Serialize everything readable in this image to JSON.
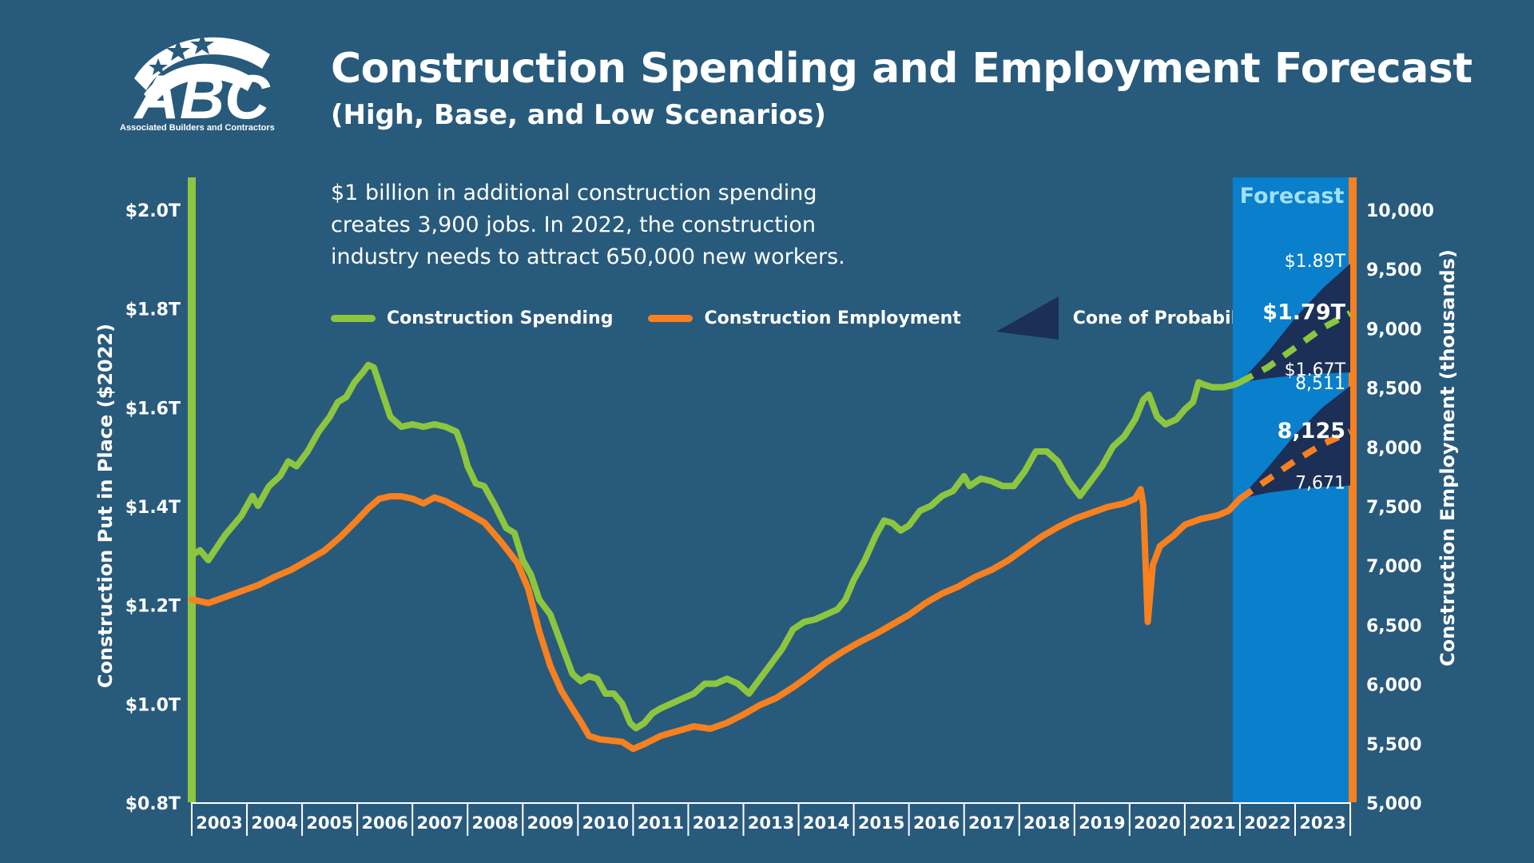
{
  "header": {
    "title": "Construction Spending and Employment Forecast",
    "subtitle": "(High, Base, and Low Scenarios)",
    "note": "$1 billion in additional construction spending creates 3,900 jobs. In 2022, the construction industry needs to attract 650,000 new workers.",
    "logo_text": "Associated Builders and Contractors",
    "logo_letters": "ABC"
  },
  "colors": {
    "background": "#285a7c",
    "spending": "#8cc63f",
    "employment": "#f7801f",
    "cone": "#1b2f57",
    "forecast_band": "#0a7fcb",
    "forecast_label": "#9ee0ff"
  },
  "legend": [
    {
      "label": "Construction Spending",
      "color": "#8cc63f",
      "kind": "line"
    },
    {
      "label": "Construction Employment",
      "color": "#f7801f",
      "kind": "line"
    },
    {
      "label": "Cone of Probability",
      "color": "#1b2f57",
      "kind": "cone"
    }
  ],
  "chart_data": {
    "type": "line",
    "title": "Construction Spending and Employment Forecast",
    "subtitle": "(High, Base, and Low Scenarios)",
    "x_axis": {
      "categories": [
        "2003",
        "2004",
        "2005",
        "2006",
        "2007",
        "2008",
        "2009",
        "2010",
        "2011",
        "2012",
        "2013",
        "2014",
        "2015",
        "2016",
        "2017",
        "2018",
        "2019",
        "2020",
        "2021",
        "2022",
        "2023"
      ]
    },
    "y_left": {
      "label": "Construction Put in Place ($2022)",
      "min": 0.8,
      "max": 2.0,
      "ticks": [
        0.8,
        1.0,
        1.2,
        1.4,
        1.6,
        1.8,
        2.0
      ],
      "tick_labels": [
        "$0.8T",
        "$1.0T",
        "$1.2T",
        "$1.4T",
        "$1.6T",
        "$1.8T",
        "$2.0T"
      ]
    },
    "y_right": {
      "label": "Construction Employment (thousands)",
      "min": 5000,
      "max": 10000,
      "ticks": [
        5000,
        5500,
        6000,
        6500,
        7000,
        7500,
        8000,
        8500,
        9000,
        9500,
        10000
      ],
      "tick_labels": [
        "5,000",
        "5,500",
        "6,000",
        "6,500",
        "7,000",
        "7,500",
        "8,000",
        "8,500",
        "9,000",
        "9,500",
        "10,000"
      ]
    },
    "forecast": {
      "label": "Forecast",
      "start": 2022.0,
      "end": 2024.0
    },
    "series": [
      {
        "name": "Construction Spending",
        "axis": "left",
        "color": "#8cc63f",
        "points": [
          [
            2003.0,
            1.3
          ],
          [
            2003.15,
            1.31
          ],
          [
            2003.3,
            1.29
          ],
          [
            2003.6,
            1.34
          ],
          [
            2003.9,
            1.38
          ],
          [
            2004.1,
            1.42
          ],
          [
            2004.2,
            1.4
          ],
          [
            2004.4,
            1.44
          ],
          [
            2004.6,
            1.46
          ],
          [
            2004.75,
            1.49
          ],
          [
            2004.9,
            1.48
          ],
          [
            2005.1,
            1.51
          ],
          [
            2005.3,
            1.55
          ],
          [
            2005.5,
            1.58
          ],
          [
            2005.65,
            1.61
          ],
          [
            2005.8,
            1.62
          ],
          [
            2005.95,
            1.65
          ],
          [
            2006.1,
            1.67
          ],
          [
            2006.2,
            1.685
          ],
          [
            2006.3,
            1.68
          ],
          [
            2006.45,
            1.63
          ],
          [
            2006.6,
            1.58
          ],
          [
            2006.8,
            1.56
          ],
          [
            2007.0,
            1.565
          ],
          [
            2007.2,
            1.56
          ],
          [
            2007.4,
            1.565
          ],
          [
            2007.6,
            1.56
          ],
          [
            2007.8,
            1.55
          ],
          [
            2007.9,
            1.52
          ],
          [
            2008.0,
            1.48
          ],
          [
            2008.15,
            1.445
          ],
          [
            2008.3,
            1.44
          ],
          [
            2008.5,
            1.4
          ],
          [
            2008.7,
            1.355
          ],
          [
            2008.85,
            1.345
          ],
          [
            2009.0,
            1.29
          ],
          [
            2009.15,
            1.26
          ],
          [
            2009.3,
            1.21
          ],
          [
            2009.5,
            1.18
          ],
          [
            2009.7,
            1.12
          ],
          [
            2009.9,
            1.06
          ],
          [
            2010.05,
            1.045
          ],
          [
            2010.2,
            1.055
          ],
          [
            2010.35,
            1.05
          ],
          [
            2010.5,
            1.02
          ],
          [
            2010.65,
            1.02
          ],
          [
            2010.8,
            1.0
          ],
          [
            2010.95,
            0.96
          ],
          [
            2011.05,
            0.95
          ],
          [
            2011.2,
            0.96
          ],
          [
            2011.35,
            0.98
          ],
          [
            2011.5,
            0.99
          ],
          [
            2011.7,
            1.0
          ],
          [
            2011.9,
            1.01
          ],
          [
            2012.1,
            1.02
          ],
          [
            2012.3,
            1.04
          ],
          [
            2012.5,
            1.04
          ],
          [
            2012.7,
            1.05
          ],
          [
            2012.9,
            1.04
          ],
          [
            2013.1,
            1.02
          ],
          [
            2013.3,
            1.05
          ],
          [
            2013.5,
            1.08
          ],
          [
            2013.7,
            1.11
          ],
          [
            2013.9,
            1.15
          ],
          [
            2014.1,
            1.165
          ],
          [
            2014.3,
            1.17
          ],
          [
            2014.5,
            1.18
          ],
          [
            2014.7,
            1.19
          ],
          [
            2014.85,
            1.21
          ],
          [
            2015.0,
            1.25
          ],
          [
            2015.2,
            1.29
          ],
          [
            2015.4,
            1.34
          ],
          [
            2015.55,
            1.37
          ],
          [
            2015.7,
            1.365
          ],
          [
            2015.85,
            1.35
          ],
          [
            2016.0,
            1.36
          ],
          [
            2016.2,
            1.39
          ],
          [
            2016.4,
            1.4
          ],
          [
            2016.6,
            1.42
          ],
          [
            2016.8,
            1.43
          ],
          [
            2017.0,
            1.46
          ],
          [
            2017.1,
            1.44
          ],
          [
            2017.3,
            1.455
          ],
          [
            2017.5,
            1.45
          ],
          [
            2017.7,
            1.44
          ],
          [
            2017.9,
            1.44
          ],
          [
            2018.1,
            1.47
          ],
          [
            2018.3,
            1.51
          ],
          [
            2018.5,
            1.51
          ],
          [
            2018.7,
            1.49
          ],
          [
            2018.9,
            1.45
          ],
          [
            2019.1,
            1.42
          ],
          [
            2019.3,
            1.45
          ],
          [
            2019.5,
            1.48
          ],
          [
            2019.7,
            1.52
          ],
          [
            2019.9,
            1.54
          ],
          [
            2020.1,
            1.575
          ],
          [
            2020.25,
            1.615
          ],
          [
            2020.35,
            1.625
          ],
          [
            2020.5,
            1.58
          ],
          [
            2020.65,
            1.565
          ],
          [
            2020.85,
            1.575
          ],
          [
            2021.0,
            1.595
          ],
          [
            2021.15,
            1.61
          ],
          [
            2021.25,
            1.65
          ],
          [
            2021.35,
            1.645
          ],
          [
            2021.5,
            1.64
          ],
          [
            2021.7,
            1.64
          ],
          [
            2021.9,
            1.645
          ],
          [
            2022.0,
            1.65
          ]
        ]
      },
      {
        "name": "Construction Employment",
        "axis": "right",
        "color": "#f7801f",
        "points": [
          [
            2003.0,
            6710
          ],
          [
            2003.3,
            6680
          ],
          [
            2003.6,
            6730
          ],
          [
            2003.9,
            6780
          ],
          [
            2004.2,
            6830
          ],
          [
            2004.5,
            6900
          ],
          [
            2004.8,
            6960
          ],
          [
            2005.1,
            7040
          ],
          [
            2005.4,
            7120
          ],
          [
            2005.7,
            7240
          ],
          [
            2006.0,
            7380
          ],
          [
            2006.2,
            7480
          ],
          [
            2006.4,
            7560
          ],
          [
            2006.6,
            7580
          ],
          [
            2006.8,
            7580
          ],
          [
            2007.0,
            7560
          ],
          [
            2007.2,
            7520
          ],
          [
            2007.4,
            7570
          ],
          [
            2007.6,
            7540
          ],
          [
            2007.8,
            7490
          ],
          [
            2008.0,
            7440
          ],
          [
            2008.3,
            7360
          ],
          [
            2008.6,
            7200
          ],
          [
            2008.9,
            7020
          ],
          [
            2009.1,
            6800
          ],
          [
            2009.3,
            6440
          ],
          [
            2009.5,
            6150
          ],
          [
            2009.7,
            5940
          ],
          [
            2009.9,
            5790
          ],
          [
            2010.05,
            5680
          ],
          [
            2010.2,
            5560
          ],
          [
            2010.4,
            5530
          ],
          [
            2010.6,
            5520
          ],
          [
            2010.8,
            5510
          ],
          [
            2011.0,
            5450
          ],
          [
            2011.2,
            5490
          ],
          [
            2011.5,
            5560
          ],
          [
            2011.8,
            5600
          ],
          [
            2012.1,
            5640
          ],
          [
            2012.4,
            5620
          ],
          [
            2012.7,
            5670
          ],
          [
            2013.0,
            5740
          ],
          [
            2013.3,
            5820
          ],
          [
            2013.6,
            5880
          ],
          [
            2013.9,
            5970
          ],
          [
            2014.2,
            6070
          ],
          [
            2014.5,
            6180
          ],
          [
            2014.8,
            6270
          ],
          [
            2015.1,
            6350
          ],
          [
            2015.4,
            6420
          ],
          [
            2015.7,
            6500
          ],
          [
            2016.0,
            6580
          ],
          [
            2016.3,
            6680
          ],
          [
            2016.6,
            6760
          ],
          [
            2016.9,
            6820
          ],
          [
            2017.2,
            6900
          ],
          [
            2017.5,
            6960
          ],
          [
            2017.8,
            7040
          ],
          [
            2018.1,
            7140
          ],
          [
            2018.4,
            7240
          ],
          [
            2018.7,
            7320
          ],
          [
            2019.0,
            7390
          ],
          [
            2019.3,
            7440
          ],
          [
            2019.6,
            7490
          ],
          [
            2019.9,
            7520
          ],
          [
            2020.1,
            7560
          ],
          [
            2020.2,
            7640
          ],
          [
            2020.25,
            7500
          ],
          [
            2020.33,
            6520
          ],
          [
            2020.42,
            7000
          ],
          [
            2020.55,
            7160
          ],
          [
            2020.8,
            7250
          ],
          [
            2021.0,
            7340
          ],
          [
            2021.3,
            7390
          ],
          [
            2021.6,
            7420
          ],
          [
            2021.8,
            7460
          ],
          [
            2022.0,
            7560
          ]
        ]
      },
      {
        "name": "Spending forecast (base)",
        "axis": "left",
        "dashed": true,
        "color": "#8cc63f",
        "points": [
          [
            2022.0,
            1.65
          ],
          [
            2022.5,
            1.68
          ],
          [
            2023.0,
            1.72
          ],
          [
            2023.5,
            1.76
          ],
          [
            2024.0,
            1.79
          ]
        ]
      },
      {
        "name": "Employment forecast (base)",
        "axis": "right",
        "dashed": true,
        "color": "#f7801f",
        "points": [
          [
            2022.0,
            7560
          ],
          [
            2022.5,
            7720
          ],
          [
            2023.0,
            7880
          ],
          [
            2023.5,
            8020
          ],
          [
            2024.0,
            8125
          ]
        ]
      }
    ],
    "cones": [
      {
        "name": "Spending cone",
        "axis": "left",
        "start": [
          2022.0,
          1.65
        ],
        "upper": [
          [
            2022.5,
            1.71
          ],
          [
            2023.0,
            1.78
          ],
          [
            2023.5,
            1.84
          ],
          [
            2024.0,
            1.89
          ]
        ],
        "lower": [
          [
            2022.5,
            1.658
          ],
          [
            2023.0,
            1.664
          ],
          [
            2023.5,
            1.668
          ],
          [
            2024.0,
            1.67
          ]
        ]
      },
      {
        "name": "Employment cone",
        "axis": "right",
        "start": [
          2022.0,
          7560
        ],
        "upper": [
          [
            2022.5,
            7820
          ],
          [
            2023.0,
            8100
          ],
          [
            2023.5,
            8330
          ],
          [
            2024.0,
            8511
          ]
        ],
        "lower": [
          [
            2022.5,
            7610
          ],
          [
            2023.0,
            7640
          ],
          [
            2023.5,
            7660
          ],
          [
            2024.0,
            7671
          ]
        ]
      }
    ],
    "annotations": [
      {
        "text": "$1.89T",
        "axis": "left",
        "x": 2024.0,
        "y": 1.89,
        "bold": false
      },
      {
        "text": "$1.79T",
        "axis": "left",
        "x": 2024.0,
        "y": 1.79,
        "bold": true
      },
      {
        "text": "$1.67T",
        "axis": "left",
        "x": 2024.0,
        "y": 1.67,
        "bold": false
      },
      {
        "text": "8,511",
        "axis": "right",
        "x": 2024.0,
        "y": 8511,
        "bold": false
      },
      {
        "text": "8,125",
        "axis": "right",
        "x": 2024.0,
        "y": 8125,
        "bold": true
      },
      {
        "text": "7,671",
        "axis": "right",
        "x": 2024.0,
        "y": 7671,
        "bold": false
      }
    ]
  }
}
